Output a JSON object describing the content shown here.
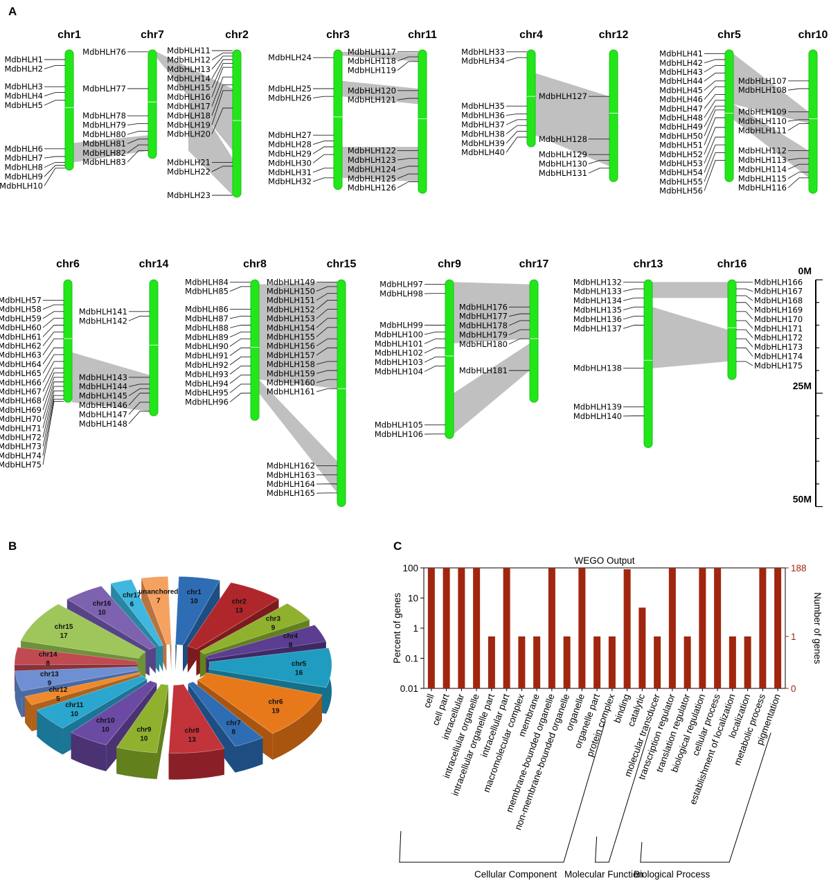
{
  "panel_labels": {
    "a": "A",
    "b": "B",
    "c": "C"
  },
  "chart_data": [
    {
      "type": "chromosome_map",
      "scale_labels": [
        "0M",
        "25M",
        "50M"
      ],
      "scale_values_mb": [
        0,
        25,
        50
      ],
      "rows": [
        {
          "chromosomes": [
            {
              "name": "chr1",
              "length_mb": 31,
              "genes": [
                "MdbHLH1",
                "MdbHLH2",
                "MdbHLH3",
                "MdbHLH4",
                "MdbHLH5",
                "MdbHLH6",
                "MdbHLH7",
                "MdbHLH8",
                "MdbHLH9",
                "MdbHLH10"
              ],
              "positions_mb": [
                2.5,
                4,
                9.5,
                11,
                13,
                25.5,
                27.5,
                29,
                29.8,
                30.5
              ],
              "side": "left"
            },
            {
              "name": "chr7",
              "length_mb": 28,
              "genes": [
                "MdbHLH76",
                "MdbHLH77",
                "MdbHLH78",
                "MdbHLH79",
                "MdbHLH80",
                "MdbHLH81",
                "MdbHLH82",
                "MdbHLH83"
              ],
              "positions_mb": [
                0.5,
                10,
                17,
                19,
                21,
                23,
                24.5,
                26
              ],
              "side": "left"
            },
            {
              "name": "chr2",
              "length_mb": 38,
              "genes": [
                "MdbHLH11",
                "MdbHLH12",
                "MdbHLH13",
                "MdbHLH14",
                "MdbHLH15",
                "MdbHLH16",
                "MdbHLH17",
                "MdbHLH18",
                "MdbHLH19",
                "MdbHLH20",
                "MdbHLH21",
                "MdbHLH22",
                "MdbHLH23"
              ],
              "positions_mb": [
                0.2,
                0.8,
                1.6,
                2.5,
                3.5,
                4.5,
                7,
                9,
                10.5,
                15,
                29,
                30,
                37.5
              ],
              "side": "left"
            },
            {
              "name": "chr3",
              "length_mb": 36,
              "genes": [
                "MdbHLH24",
                "MdbHLH25",
                "MdbHLH26",
                "MdbHLH27",
                "MdbHLH28",
                "MdbHLH29",
                "MdbHLH30",
                "MdbHLH31",
                "MdbHLH32"
              ],
              "positions_mb": [
                2,
                10,
                12,
                22,
                23.5,
                25,
                27,
                30.5,
                33
              ],
              "side": "left"
            },
            {
              "name": "chr11",
              "length_mb": 37,
              "genes": [
                "MdbHLH117",
                "MdbHLH118",
                "MdbHLH119",
                "MdbHLH120",
                "MdbHLH121",
                "MdbHLH122",
                "MdbHLH123",
                "MdbHLH124",
                "MdbHLH125",
                "MdbHLH126"
              ],
              "positions_mb": [
                0.5,
                1.8,
                3,
                10.5,
                12.5,
                26,
                28,
                30,
                32,
                34
              ],
              "side": "left"
            },
            {
              "name": "chr4",
              "length_mb": 25,
              "genes": [
                "MdbHLH33",
                "MdbHLH34",
                "MdbHLH35",
                "MdbHLH36",
                "MdbHLH37",
                "MdbHLH38",
                "MdbHLH39",
                "MdbHLH40"
              ],
              "positions_mb": [
                0.5,
                2,
                14.5,
                16.5,
                18,
                19.5,
                21,
                22.5
              ],
              "side": "left"
            },
            {
              "name": "chr12",
              "length_mb": 34,
              "genes": [
                "MdbHLH127",
                "MdbHLH128",
                "MdbHLH129",
                "MdbHLH130",
                "MdbHLH131"
              ],
              "positions_mb": [
                12,
                23,
                27,
                28.5,
                30.5
              ],
              "side": "left"
            },
            {
              "name": "chr5",
              "length_mb": 34,
              "genes": [
                "MdbHLH41",
                "MdbHLH42",
                "MdbHLH43",
                "MdbHLH44",
                "MdbHLH45",
                "MdbHLH46",
                "MdbHLH47",
                "MdbHLH48",
                "MdbHLH49",
                "MdbHLH50",
                "MdbHLH51",
                "MdbHLH52",
                "MdbHLH53",
                "MdbHLH54",
                "MdbHLH55",
                "MdbHLH56"
              ],
              "positions_mb": [
                1,
                2.5,
                4,
                6,
                8,
                9.5,
                11.5,
                13,
                14.5,
                15.5,
                17.5,
                20,
                22.5,
                24.5,
                26.5,
                28.5
              ],
              "side": "left"
            },
            {
              "name": "chr10",
              "length_mb": 37,
              "genes": [
                "MdbHLH107",
                "MdbHLH108",
                "MdbHLH109",
                "MdbHLH110",
                "MdbHLH111",
                "MdbHLH112",
                "MdbHLH113",
                "MdbHLH114",
                "MdbHLH115",
                "MdbHLH116"
              ],
              "positions_mb": [
                8,
                10,
                16,
                18,
                19,
                26,
                28,
                29.5,
                31.5,
                33
              ],
              "side": "left"
            }
          ],
          "links": [
            [
              "chr1",
              "chr7"
            ],
            [
              "chr7",
              "chr2"
            ],
            [
              "chr2",
              "chr2"
            ],
            [
              "chr3",
              "chr11"
            ],
            [
              "chr3",
              "chr11"
            ],
            [
              "chr3",
              "chr11"
            ],
            [
              "chr4",
              "chr12"
            ],
            [
              "chr5",
              "chr10"
            ],
            [
              "chr5",
              "chr10"
            ]
          ]
        },
        {
          "chromosomes": [
            {
              "name": "chr6",
              "length_mb": 27,
              "genes": [
                "MdbHLH57",
                "MdbHLH58",
                "MdbHLH59",
                "MdbHLH60",
                "MdbHLH61",
                "MdbHLH62",
                "MdbHLH63",
                "MdbHLH64",
                "MdbHLH65",
                "MdbHLH66",
                "MdbHLH67",
                "MdbHLH68",
                "MdbHLH69",
                "MdbHLH70",
                "MdbHLH71",
                "MdbHLH72",
                "MdbHLH73",
                "MdbHLH74",
                "MdbHLH75"
              ],
              "positions_mb": [
                4.5,
                5.5,
                7,
                8.5,
                10,
                11.5,
                13,
                15,
                16.5,
                18,
                19.5,
                20.5,
                21.5,
                22.5,
                23.5,
                24.5,
                25.5,
                26.3,
                26.8
              ],
              "side": "left"
            },
            {
              "name": "chr14",
              "length_mb": 30,
              "genes": [
                "MdbHLH141",
                "MdbHLH142",
                "MdbHLH143",
                "MdbHLH144",
                "MdbHLH145",
                "MdbHLH146",
                "MdbHLH147",
                "MdbHLH148"
              ],
              "positions_mb": [
                7,
                8,
                21.5,
                23,
                24,
                25,
                27,
                29
              ],
              "side": "left"
            },
            {
              "name": "chr8",
              "length_mb": 31,
              "genes": [
                "MdbHLH84",
                "MdbHLH85",
                "MdbHLH86",
                "MdbHLH87",
                "MdbHLH88",
                "MdbHLH89",
                "MdbHLH90",
                "MdbHLH91",
                "MdbHLH92",
                "MdbHLH93",
                "MdbHLH94",
                "MdbHLH95",
                "MdbHLH96"
              ],
              "positions_mb": [
                0.5,
                1.5,
                6.5,
                8,
                10,
                11.5,
                13,
                15,
                17,
                19,
                21,
                23,
                25
              ],
              "side": "left"
            },
            {
              "name": "chr15",
              "length_mb": 50,
              "genes": [
                "MdbHLH149",
                "MdbHLH150",
                "MdbHLH151",
                "MdbHLH152",
                "MdbHLH153",
                "MdbHLH154",
                "MdbHLH155",
                "MdbHLH156",
                "MdbHLH157",
                "MdbHLH158",
                "MdbHLH159",
                "MdbHLH160",
                "MdbHLH161",
                "MdbHLH162",
                "MdbHLH163",
                "MdbHLH164",
                "MdbHLH165"
              ],
              "positions_mb": [
                0.5,
                1.5,
                3,
                4.5,
                6.5,
                8.5,
                10.5,
                13,
                15,
                18,
                20,
                22,
                24,
                41,
                43,
                45,
                47
              ],
              "side": "left"
            },
            {
              "name": "chr9",
              "length_mb": 35,
              "genes": [
                "MdbHLH97",
                "MdbHLH98",
                "MdbHLH99",
                "MdbHLH100",
                "MdbHLH101",
                "MdbHLH102",
                "MdbHLH103",
                "MdbHLH104",
                "MdbHLH105",
                "MdbHLH106"
              ],
              "positions_mb": [
                1,
                3,
                10,
                11.5,
                13,
                15,
                17,
                19,
                32,
                34
              ],
              "side": "left"
            },
            {
              "name": "chr17",
              "length_mb": 27,
              "genes": [
                "MdbHLH176",
                "MdbHLH177",
                "MdbHLH178",
                "MdbHLH179",
                "MdbHLH180",
                "MdbHLH181"
              ],
              "positions_mb": [
                6,
                7.5,
                9,
                11,
                13,
                20
              ],
              "side": "left"
            },
            {
              "name": "chr13",
              "length_mb": 37,
              "genes": [
                "MdbHLH132",
                "MdbHLH133",
                "MdbHLH134",
                "MdbHLH135",
                "MdbHLH136",
                "MdbHLH137",
                "MdbHLH138",
                "MdbHLH139",
                "MdbHLH140"
              ],
              "positions_mb": [
                0.5,
                2,
                4,
                6,
                8,
                10,
                19.5,
                28,
                30
              ],
              "side": "left"
            },
            {
              "name": "chr16",
              "length_mb": 22,
              "genes": [
                "MdbHLH166",
                "MdbHLH167",
                "MdbHLH168",
                "MdbHLH169",
                "MdbHLH170",
                "MdbHLH171",
                "MdbHLH172",
                "MdbHLH173",
                "MdbHLH174",
                "MdbHLH175"
              ],
              "positions_mb": [
                0.5,
                2,
                3.5,
                5,
                7,
                9,
                11,
                13,
                15,
                18
              ],
              "side": "right"
            }
          ],
          "links": [
            [
              "chr6",
              "chr14"
            ],
            [
              "chr8",
              "chr15"
            ],
            [
              "chr8",
              "chr15"
            ],
            [
              "chr9",
              "chr17"
            ],
            [
              "chr9",
              "chr17"
            ],
            [
              "chr13",
              "chr16"
            ],
            [
              "chr13",
              "chr16"
            ]
          ]
        }
      ]
    },
    {
      "type": "pie",
      "categories": [
        "chr1",
        "chr2",
        "chr3",
        "chr4",
        "chr5",
        "chr6",
        "chr7",
        "chr8",
        "chr9",
        "chr10",
        "chr11",
        "chr12",
        "chr13",
        "chr14",
        "chr15",
        "chr16",
        "chr17",
        "unanchored"
      ],
      "values": [
        10,
        13,
        9,
        8,
        16,
        19,
        8,
        13,
        10,
        10,
        10,
        5,
        9,
        8,
        17,
        10,
        6,
        7
      ],
      "colors": [
        "#2e6db4",
        "#b0272b",
        "#8fb12e",
        "#5b3d91",
        "#1f9cc0",
        "#e8791a",
        "#2e6db4",
        "#c3333a",
        "#8fb12e",
        "#6a4aa2",
        "#2aa6cf",
        "#f0892b",
        "#6e8fd1",
        "#c04a52",
        "#9ec65a",
        "#7d62b0",
        "#3fb7de",
        "#f5a261"
      ],
      "sides": [
        "#1e4d82",
        "#7d1a1e",
        "#62801c",
        "#3e2966",
        "#14708b",
        "#a9550f",
        "#1e4d82",
        "#8a2027",
        "#62801c",
        "#4a3273",
        "#1b7595",
        "#b0621b",
        "#4a6aa2",
        "#8a323a",
        "#6e913a",
        "#574486",
        "#2886a3",
        "#b9733f"
      ]
    },
    {
      "type": "bar",
      "title": "WEGO Output",
      "ylabel": "Percent of genes",
      "ylabel_right": "Number of genes",
      "yscale": "log",
      "ylim": [
        0.01,
        100
      ],
      "yticks": [
        "100",
        "10",
        "1",
        "0.1",
        "0.01"
      ],
      "yticks_right": [
        "188",
        "1",
        "0"
      ],
      "bar_color": "#a0260f",
      "categories": [
        "cell",
        "cell part",
        "intracellular",
        "intracellular organelle",
        "intracellular organelle part",
        "intracellular part",
        "macromolecular complex",
        "membrane",
        "membrane-bounded organelle",
        "non-membrane-bounded organelle",
        "organelle",
        "organelle part",
        "protein complex",
        "binding",
        "catalytic",
        "molecular transducer",
        "transcription regulator",
        "translation regulator",
        "biological regulation",
        "cellular process",
        "establishment of localization",
        "localization",
        "metabolic process",
        "pigmentation"
      ],
      "values": [
        100,
        100,
        100,
        100,
        0.53,
        100,
        0.53,
        0.53,
        100,
        0.53,
        100,
        0.53,
        0.53,
        90,
        4.8,
        0.53,
        100,
        0.53,
        100,
        100,
        0.53,
        0.53,
        100,
        100
      ],
      "groups": [
        {
          "name": "Cellular Component",
          "from": 0,
          "to": 12
        },
        {
          "name": "Molecular Function",
          "from": 13,
          "to": 15
        },
        {
          "name": "Biological Process",
          "from": 16,
          "to": 23
        }
      ]
    }
  ]
}
